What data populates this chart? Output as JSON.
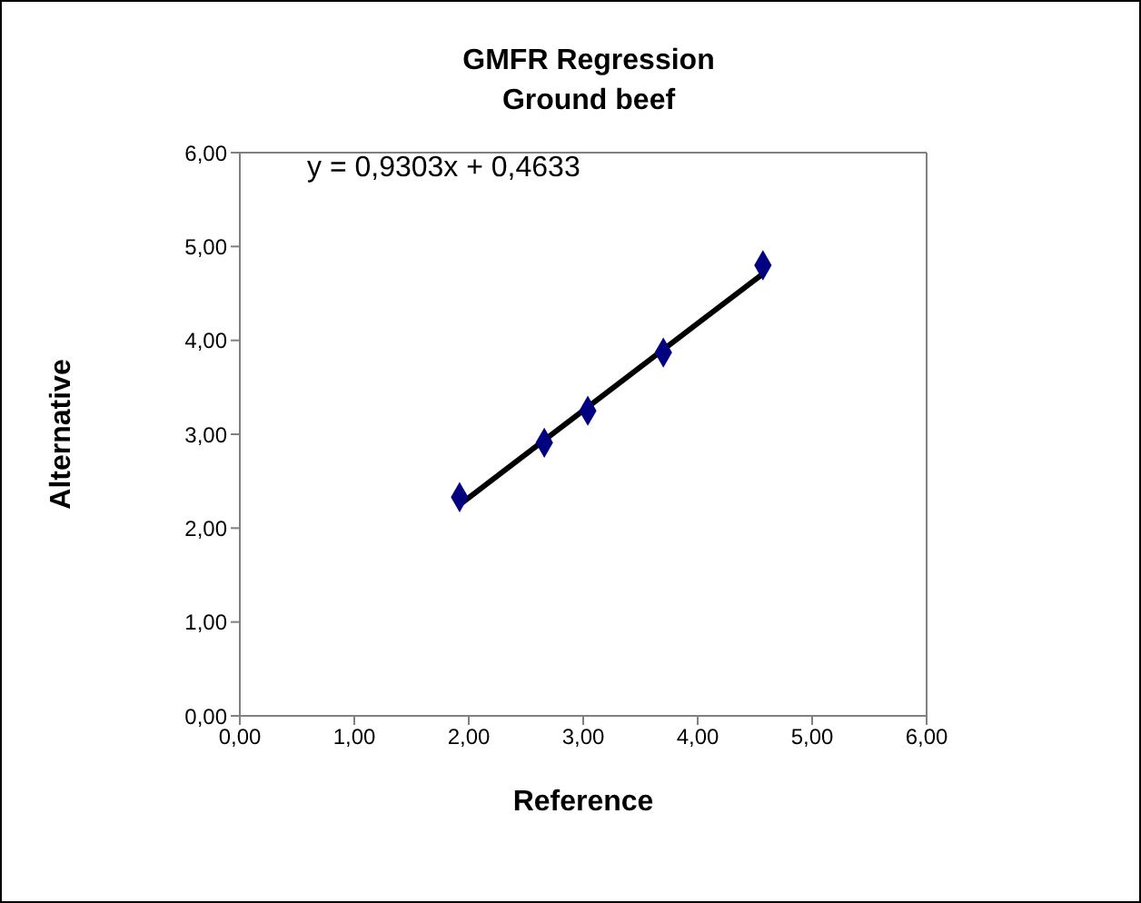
{
  "chart_data": {
    "type": "scatter",
    "title": "GMFR Regression\nGround beef",
    "xlabel": "Reference",
    "ylabel": "Alternative",
    "annotations": [
      "y = 0,9303x + 0,4633"
    ],
    "x": [
      1.92,
      2.66,
      3.04,
      3.7,
      4.57
    ],
    "series": [
      {
        "color": "#000080",
        "values": [
          2.33,
          2.91,
          3.25,
          3.87,
          4.8
        ],
        "marker": "diamond"
      },
      {
        "type": "line",
        "color": "#000000",
        "x": [
          1.92,
          4.57
        ],
        "values": [
          2.25,
          4.71
        ],
        "marker": "none",
        "line_style": "solid"
      }
    ],
    "xlim": [
      0,
      6
    ],
    "ylim": [
      0,
      6
    ],
    "xticks": [
      {
        "value": 0,
        "label": "0,00"
      },
      {
        "value": 1,
        "label": "1,00"
      },
      {
        "value": 2,
        "label": "2,00"
      },
      {
        "value": 3,
        "label": "3,00"
      },
      {
        "value": 4,
        "label": "4,00"
      },
      {
        "value": 5,
        "label": "5,00"
      },
      {
        "value": 6,
        "label": "6,00"
      }
    ],
    "yticks": [
      {
        "value": 0,
        "label": "0,00"
      },
      {
        "value": 1,
        "label": "1,00"
      },
      {
        "value": 2,
        "label": "2,00"
      },
      {
        "value": 3,
        "label": "3,00"
      },
      {
        "value": 4,
        "label": "4,00"
      },
      {
        "value": 5,
        "label": "5,00"
      },
      {
        "value": 6,
        "label": "6,00"
      }
    ],
    "grid": false,
    "legend": false
  }
}
